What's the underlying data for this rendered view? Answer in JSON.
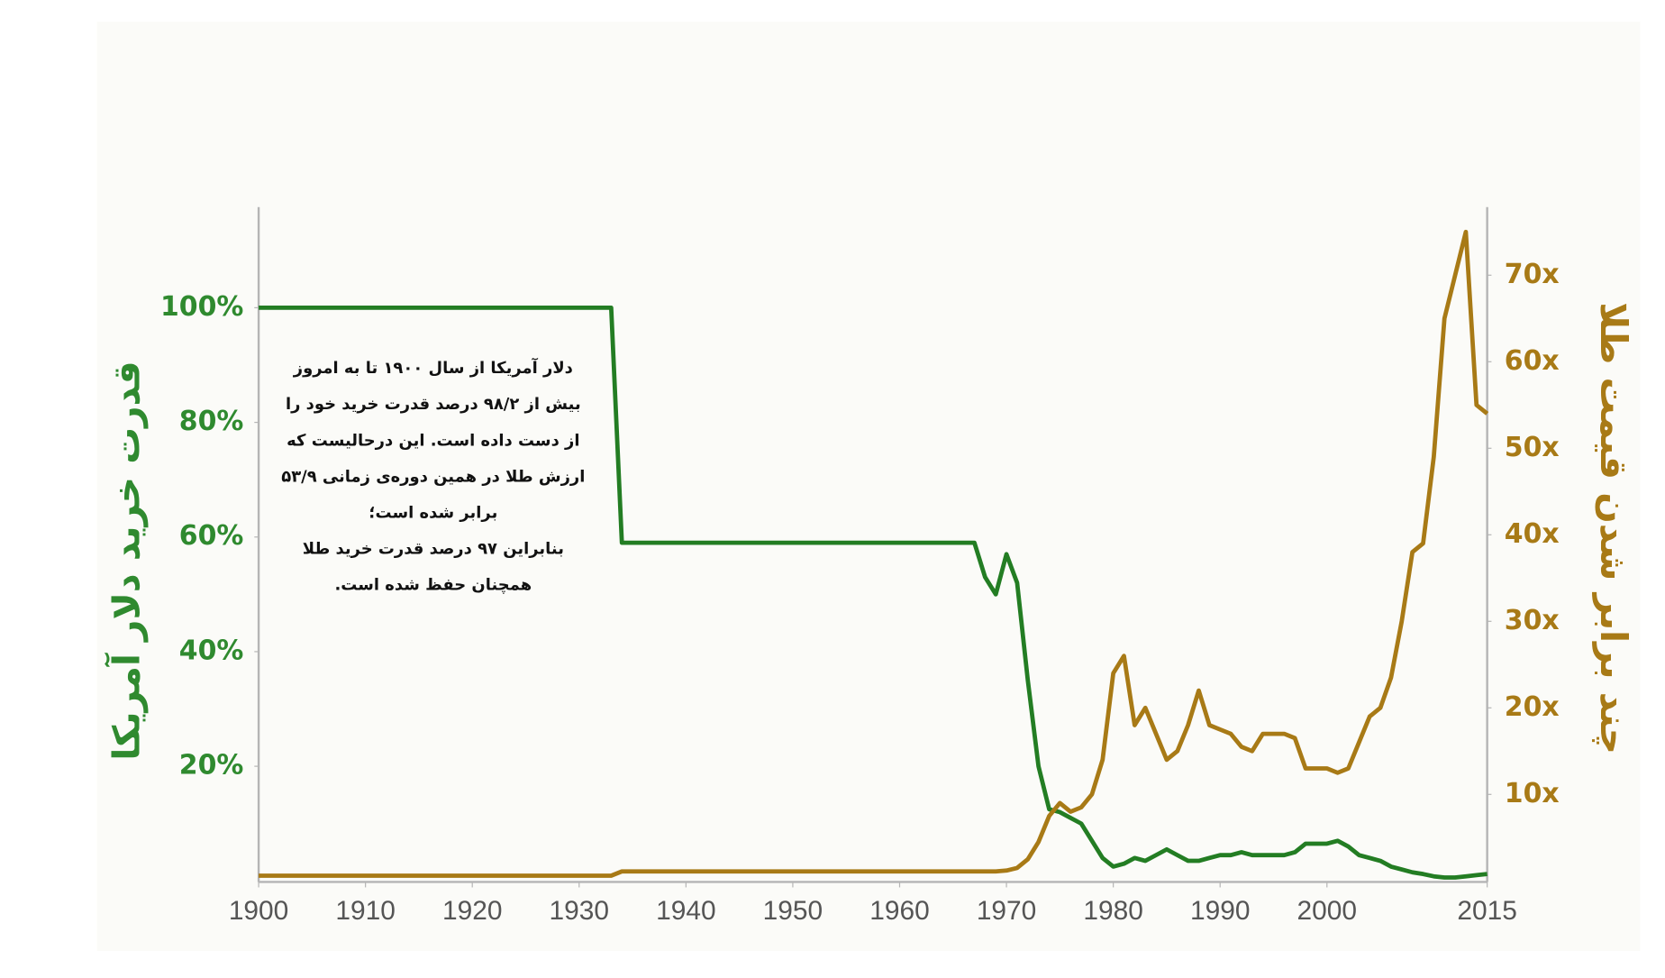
{
  "chart_data": {
    "type": "line",
    "y_label": "قدرت خرید دلار آمریکا",
    "y2_label": "چند برابر شدن قیمت طلا",
    "annotation": [
      "دلار آمریکا از سال ۱۹۰۰ تا به امروز",
      "بیش از ۹۸/۲ درصد قدرت خرید خود را",
      "از دست داده است. این درحالیست که",
      "ارزش طلا در همین دوره‌ی زمانی ۵۳/۹",
      "برابر شده است؛",
      "بنابراین ۹۷ درصد قدرت خرید طلا",
      "همچنان حفظ شده است."
    ],
    "xlim": [
      1900,
      2015
    ],
    "xticks": [
      1900,
      1910,
      1920,
      1930,
      1940,
      1950,
      1960,
      1970,
      1980,
      1990,
      2000,
      2015
    ],
    "ylim": [
      0,
      117
    ],
    "yticks": [
      {
        "value": 20,
        "label": "20%"
      },
      {
        "value": 40,
        "label": "40%"
      },
      {
        "value": 60,
        "label": "60%"
      },
      {
        "value": 80,
        "label": "80%"
      },
      {
        "value": 100,
        "label": "100%"
      }
    ],
    "y2lim": [
      0,
      77.5
    ],
    "y2ticks": [
      {
        "value": 10,
        "label": "10x"
      },
      {
        "value": 20,
        "label": "20x"
      },
      {
        "value": 30,
        "label": "30x"
      },
      {
        "value": 40,
        "label": "40x"
      },
      {
        "value": 50,
        "label": "50x"
      },
      {
        "value": 60,
        "label": "60x"
      },
      {
        "value": 70,
        "label": "70x"
      }
    ],
    "grid": false,
    "series": [
      {
        "color": "#237d23",
        "x": [
          1900,
          1933,
          1934,
          1966,
          1967,
          1968,
          1969,
          1970,
          1971,
          1972,
          1973,
          1974,
          1975,
          1976,
          1977,
          1978,
          1979,
          1980,
          1981,
          1982,
          1983,
          1984,
          1985,
          1986,
          1987,
          1988,
          1989,
          1990,
          1991,
          1992,
          1993,
          1994,
          1995,
          1996,
          1997,
          1998,
          1999,
          2000,
          2001,
          2002,
          2003,
          2004,
          2005,
          2006,
          2007,
          2008,
          2009,
          2010,
          2011,
          2012,
          2013,
          2014,
          2015
        ],
        "values": [
          100,
          100,
          59,
          59,
          59,
          53,
          50,
          57,
          52,
          35,
          20,
          12.5,
          12,
          11,
          10,
          7,
          4,
          2.5,
          3,
          4,
          3.5,
          4.5,
          5.5,
          4.5,
          3.5,
          3.5,
          4,
          4.5,
          4.5,
          5,
          4.5,
          4.5,
          4.5,
          4.5,
          5,
          6.5,
          6.5,
          6.5,
          7,
          6,
          4.5,
          4,
          3.5,
          2.5,
          2,
          1.5,
          1.2,
          0.8,
          0.6,
          0.6,
          0.8,
          1,
          1.2
        ]
      },
      {
        "color": "#a87a16",
        "axis": "y2",
        "x": [
          1900,
          1933,
          1934,
          1969,
          1970,
          1971,
          1972,
          1973,
          1974,
          1975,
          1976,
          1977,
          1978,
          1979,
          1980,
          1981,
          1982,
          1983,
          1984,
          1985,
          1986,
          1987,
          1988,
          1989,
          1990,
          1991,
          1992,
          1993,
          1994,
          1995,
          1996,
          1997,
          1998,
          1999,
          2000,
          2001,
          2002,
          2003,
          2004,
          2005,
          2006,
          2007,
          2008,
          2009,
          2010,
          2011,
          2012,
          2013,
          2014,
          2015
        ],
        "values": [
          0.6,
          0.6,
          1.1,
          1.1,
          1.2,
          1.5,
          2.5,
          4.5,
          7.5,
          9,
          8,
          8.5,
          10,
          14,
          24,
          26,
          18,
          20,
          17,
          14,
          15,
          18,
          22,
          18,
          17.5,
          17,
          15.5,
          15,
          17,
          17,
          17,
          16.5,
          13,
          13,
          13,
          12.5,
          13,
          16,
          19,
          20,
          23.5,
          30,
          38,
          39,
          49,
          65,
          70,
          75,
          55,
          54
        ]
      }
    ]
  }
}
